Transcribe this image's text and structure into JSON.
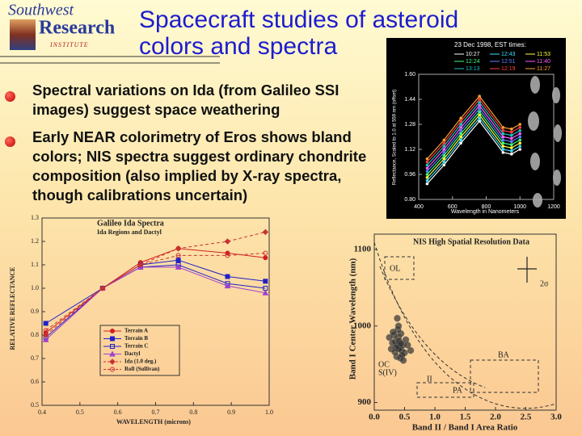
{
  "header": {
    "logo": {
      "line1": "Southwest",
      "line2": "Research",
      "line3": "INSTITUTE"
    },
    "title": "Spacecraft studies of asteroid colors and spectra"
  },
  "bullets": [
    "Spectral variations on Ida (from Galileo SSI images) suggest space weathering",
    "Early NEAR colorimetry of Eros shows bland colors; NIS spectra suggest ordinary chondrite composition (also implied by X-ray spectra, though calibrations uncertain)"
  ],
  "chart_data": [
    {
      "type": "line",
      "title": "23 Dec 1998, EST times:",
      "x_label": "Wavelength in Nanometers",
      "y_label": "Reflectance, Scaled to 1.0 at 559 nm (offset)",
      "x": [
        450,
        550,
        650,
        760,
        900,
        950,
        1000
      ],
      "series": [
        {
          "name": "10:27",
          "color": "#ffffff",
          "values": [
            0.9,
            1.02,
            1.16,
            1.3,
            1.1,
            1.09,
            1.12
          ]
        },
        {
          "name": "12:43",
          "color": "#40e0ff",
          "values": [
            0.92,
            1.04,
            1.18,
            1.32,
            1.12,
            1.11,
            1.14
          ]
        },
        {
          "name": "11:53",
          "color": "#ffff40",
          "values": [
            0.94,
            1.06,
            1.2,
            1.34,
            1.14,
            1.13,
            1.16
          ]
        },
        {
          "name": "12:24",
          "color": "#40ff80",
          "values": [
            0.96,
            1.08,
            1.22,
            1.36,
            1.16,
            1.15,
            1.18
          ]
        },
        {
          "name": "12:51",
          "color": "#6080ff",
          "values": [
            0.98,
            1.1,
            1.24,
            1.38,
            1.18,
            1.17,
            1.2
          ]
        },
        {
          "name": "11:40",
          "color": "#ff60ff",
          "values": [
            1.0,
            1.12,
            1.26,
            1.4,
            1.2,
            1.19,
            1.22
          ]
        },
        {
          "name": "13:13",
          "color": "#20c0c0",
          "values": [
            1.02,
            1.14,
            1.28,
            1.42,
            1.22,
            1.21,
            1.24
          ]
        },
        {
          "name": "12:19",
          "color": "#ff4040",
          "values": [
            1.04,
            1.16,
            1.3,
            1.44,
            1.24,
            1.23,
            1.26
          ]
        },
        {
          "name": "11:27",
          "color": "#ffa030",
          "values": [
            1.06,
            1.18,
            1.32,
            1.46,
            1.26,
            1.25,
            1.28
          ]
        }
      ],
      "xlim": [
        400,
        1200
      ],
      "ylim": [
        0.8,
        1.6
      ],
      "xticks": [
        400,
        600,
        800,
        1000,
        1200
      ],
      "yticks": [
        {
          "value": 0.8,
          "label": "0.80"
        },
        0.96,
        1.12,
        1.28,
        1.44,
        {
          "value": 1.6,
          "label": "1.60"
        }
      ]
    },
    {
      "type": "line",
      "title": "Galileo Ida Spectra",
      "subtitle": "Ida Regions and Dactyl",
      "x_label": "WAVELENGTH (microns)",
      "y_label": "RELATIVE REFLECTANCE",
      "x": [
        0.41,
        0.56,
        0.66,
        0.76,
        0.89,
        0.99
      ],
      "series": [
        {
          "name": "Terrain A",
          "color": "#d02020",
          "marker": "circle",
          "dashed": false,
          "values": [
            0.81,
            1.0,
            1.11,
            1.17,
            1.15,
            1.13
          ]
        },
        {
          "name": "Terrain B",
          "color": "#2020c8",
          "marker": "square",
          "dashed": false,
          "values": [
            0.85,
            1.0,
            1.1,
            1.12,
            1.05,
            1.03
          ]
        },
        {
          "name": "Terrain C",
          "color": "#2020c8",
          "marker": "open-square",
          "dashed": false,
          "values": [
            0.79,
            1.0,
            1.09,
            1.1,
            1.02,
            1.0
          ]
        },
        {
          "name": "Dactyl",
          "color": "#a040d0",
          "marker": "triangle",
          "dashed": false,
          "values": [
            0.78,
            1.0,
            1.09,
            1.09,
            1.01,
            0.98
          ]
        },
        {
          "name": "Ida (1.0 deg.)",
          "color": "#c83030",
          "marker": "diamond",
          "dashed": true,
          "values": [
            0.8,
            1.0,
            1.1,
            1.17,
            1.2,
            1.24
          ]
        },
        {
          "name": "Roll (Sullivan)",
          "color": "#c83030",
          "marker": "open-circle",
          "dashed": true,
          "values": [
            0.82,
            1.0,
            1.1,
            1.14,
            1.14,
            1.15
          ]
        }
      ],
      "xlim": [
        0.4,
        1.0
      ],
      "ylim": [
        0.5,
        1.3
      ],
      "xticks": [
        0.4,
        0.5,
        0.6,
        0.7,
        0.8,
        0.9,
        {
          "value": 1,
          "label": "1.0"
        }
      ],
      "yticks": [
        0.5,
        0.6,
        0.7,
        0.8,
        0.9,
        {
          "value": 1,
          "label": "1.0"
        },
        1.1,
        1.2,
        1.3
      ]
    },
    {
      "type": "scatter",
      "title": "NIS High Spatial Resolution Data",
      "x_label": "Band II / Band I Area Ratio",
      "y_label": "Band I Center Wavelength (nm)",
      "color": "#303030",
      "x": [
        0.38,
        0.42,
        0.35,
        0.45,
        0.4,
        0.3,
        0.5,
        0.44,
        0.37,
        0.41,
        0.33,
        0.47,
        0.39,
        0.43,
        0.36,
        0.52,
        0.28,
        0.46,
        0.4,
        0.34,
        0.55,
        0.25,
        0.48,
        0.41,
        0.38,
        0.6,
        0.31,
        0.44
      ],
      "y": [
        975,
        972,
        980,
        968,
        985,
        978,
        965,
        990,
        960,
        970,
        988,
        975,
        995,
        958,
        972,
        982,
        970,
        962,
        1000,
        966,
        975,
        985,
        955,
        980,
        1010,
        968,
        992,
        977
      ],
      "annotations": [
        "OL",
        "BA",
        "S(IV)",
        "OC",
        "PA",
        "II",
        "2σ"
      ],
      "xlim": [
        0,
        3
      ],
      "ylim": [
        890,
        1120
      ],
      "xticks": [
        {
          "value": 0,
          "label": "0.0"
        },
        0.5,
        {
          "value": 1,
          "label": "1.0"
        },
        1.5,
        {
          "value": 2,
          "label": "2.0"
        },
        2.5,
        {
          "value": 3,
          "label": "3.0"
        }
      ],
      "yticks": [
        900,
        1000,
        1100
      ]
    }
  ]
}
